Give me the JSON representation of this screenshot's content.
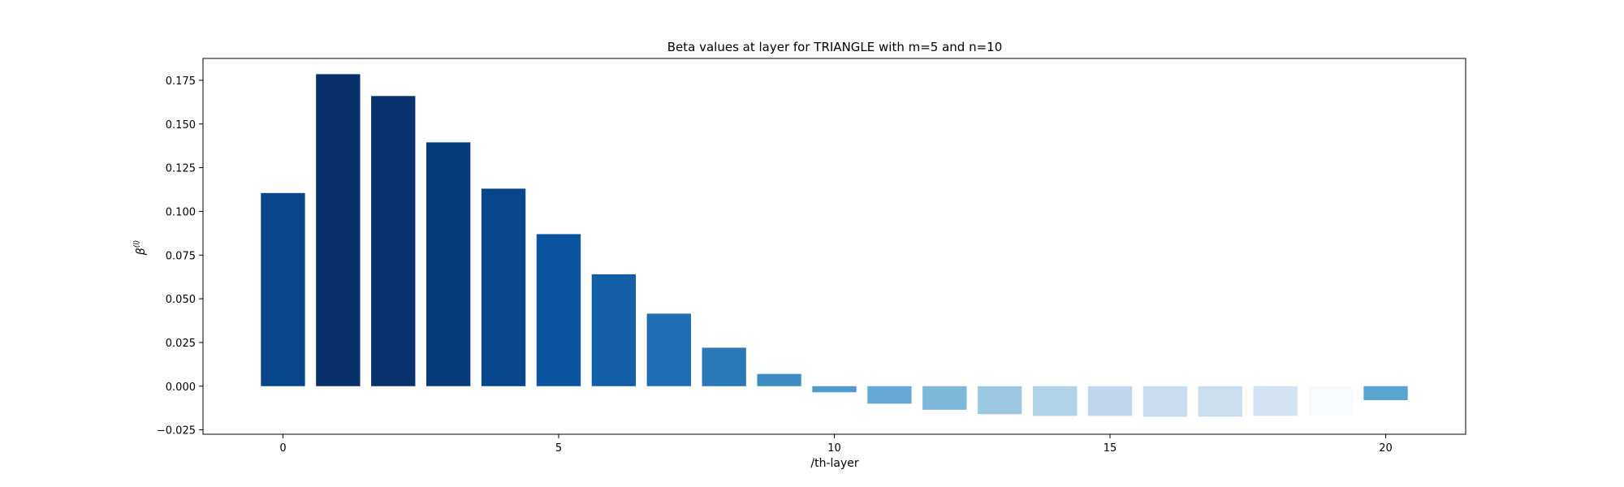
{
  "chart_data": {
    "type": "bar",
    "title": "Beta values at layer for TRIANGLE with m=5 and n=10",
    "xlabel": "/th-layer",
    "ylabel": "β",
    "ylabel_superscript": "(l)",
    "categories": [
      0,
      1,
      2,
      3,
      4,
      5,
      6,
      7,
      8,
      9,
      10,
      11,
      12,
      13,
      14,
      15,
      16,
      17,
      18,
      19,
      20
    ],
    "values": [
      0.1105,
      0.1785,
      0.166,
      0.1395,
      0.113,
      0.087,
      0.064,
      0.0415,
      0.022,
      0.007,
      -0.0035,
      -0.01,
      -0.0135,
      -0.016,
      -0.017,
      -0.017,
      -0.0175,
      -0.0175,
      -0.017,
      -0.017,
      -0.008
    ],
    "colors": [
      "#08468b",
      "#08306b",
      "#08326e",
      "#083b7c",
      "#08468b",
      "#0b55a0",
      "#1460a8",
      "#1f6eb3",
      "#2979b9",
      "#3d8dc4",
      "#4f9bcb",
      "#64a9d3",
      "#7db8da",
      "#9cc9e1",
      "#b1d3e7",
      "#c0d8ed",
      "#c9ddf0",
      "#cbdef0",
      "#d2e3f3",
      "#f7fbff",
      "#5ba3d0"
    ],
    "xticks": [
      "0",
      "5",
      "10",
      "15",
      "20"
    ],
    "xtick_values": [
      0,
      5,
      10,
      15,
      20
    ],
    "yticks": [
      "−0.025",
      "0.000",
      "0.025",
      "0.050",
      "0.075",
      "0.100",
      "0.125",
      "0.150",
      "0.175"
    ],
    "ytick_values": [
      -0.025,
      0,
      0.025,
      0.05,
      0.075,
      0.1,
      0.125,
      0.15,
      0.175
    ],
    "xlim": [
      -1.45,
      21.45
    ],
    "ylim": [
      -0.0275,
      0.1875
    ],
    "grid": false
  }
}
